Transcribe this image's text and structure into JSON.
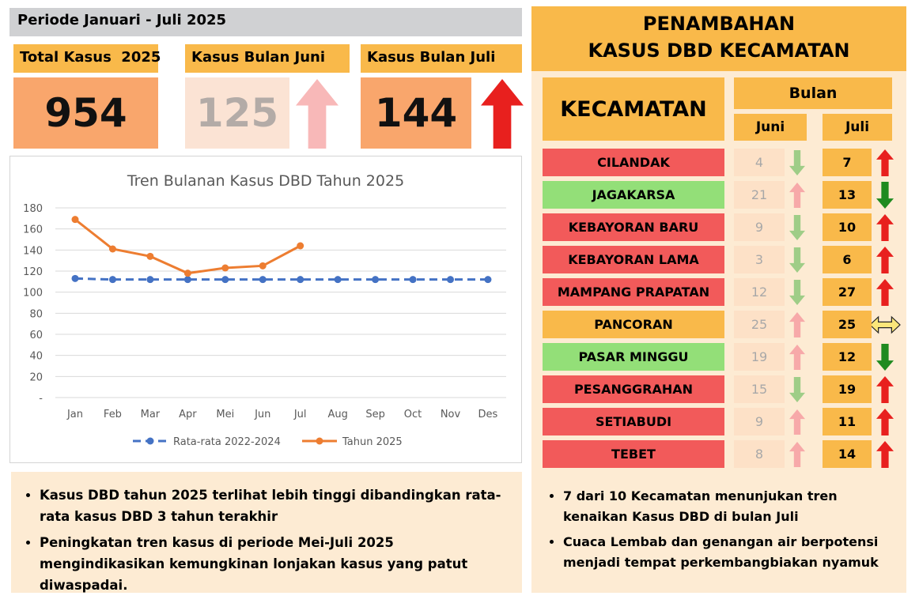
{
  "period": "Periode Januari - Juli 2025",
  "kpis": [
    {
      "label": "Total Kasus  2025",
      "value": 954
    },
    {
      "label": "Kasus Bulan Juni",
      "value": 125,
      "trend": "up",
      "faded": true
    },
    {
      "label": "Kasus Bulan Juli",
      "value": 144,
      "trend": "up"
    }
  ],
  "chart_data": {
    "type": "line",
    "title": "Tren Bulanan Kasus DBD Tahun 2025",
    "categories": [
      "Jan",
      "Feb",
      "Mar",
      "Apr",
      "Mei",
      "Jun",
      "Jul",
      "Aug",
      "Sep",
      "Oct",
      "Nov",
      "Des"
    ],
    "series": [
      {
        "name": "Rata-rata 2022-2024",
        "color": "#4472c4",
        "dashed": true,
        "values": [
          113,
          112,
          112,
          112,
          112,
          112,
          112,
          112,
          112,
          112,
          112,
          112
        ]
      },
      {
        "name": "Tahun 2025",
        "color": "#ed7d31",
        "values": [
          169,
          141,
          134,
          118,
          123,
          125,
          144,
          null,
          null,
          null,
          null,
          null
        ]
      }
    ],
    "ylim": [
      0,
      180
    ],
    "yticks": [
      {
        "value": 0,
        "label": "-"
      },
      20,
      40,
      60,
      80,
      100,
      120,
      140,
      160,
      180
    ],
    "grid": true,
    "legend": "bottom"
  },
  "notes_left": [
    "Kasus DBD tahun 2025 terlihat lebih tinggi dibandingkan rata-rata kasus DBD 3 tahun terakhir",
    "Peningkatan tren kasus di periode Mei-Juli 2025 mengindikasikan kemungkinan lonjakan kasus yang patut diwaspadai."
  ],
  "panel": {
    "title_lines": [
      "PENAMBAHAN",
      "KASUS DBD KECAMATAN"
    ],
    "header": "KECAMATAN",
    "month_group": "Bulan",
    "months": [
      "Juni",
      "Juli"
    ],
    "rows": [
      {
        "name": "CILANDAK",
        "color": "#f25a5a",
        "juni": 4,
        "juni_trend": "down",
        "juli": 7,
        "juli_trend": "up"
      },
      {
        "name": "JAGAKARSA",
        "color": "#93df78",
        "juni": 21,
        "juni_trend": "up",
        "juli": 13,
        "juli_trend": "down"
      },
      {
        "name": "KEBAYORAN BARU",
        "color": "#f25a5a",
        "juni": 9,
        "juni_trend": "down",
        "juli": 10,
        "juli_trend": "up"
      },
      {
        "name": "KEBAYORAN LAMA",
        "color": "#f25a5a",
        "juni": 3,
        "juni_trend": "down",
        "juli": 6,
        "juli_trend": "up"
      },
      {
        "name": "MAMPANG PRAPATAN",
        "color": "#f25a5a",
        "juni": 12,
        "juni_trend": "down",
        "juli": 27,
        "juli_trend": "up"
      },
      {
        "name": "PANCORAN",
        "color": "#f9b94a",
        "juni": 25,
        "juni_trend": "up",
        "juli": 25,
        "juli_trend": "equal"
      },
      {
        "name": "PASAR MINGGU",
        "color": "#93df78",
        "juni": 19,
        "juni_trend": "up",
        "juli": 12,
        "juli_trend": "down"
      },
      {
        "name": "PESANGGRAHAN",
        "color": "#f25a5a",
        "juni": 15,
        "juni_trend": "down",
        "juli": 19,
        "juli_trend": "up"
      },
      {
        "name": "SETIABUDI",
        "color": "#f25a5a",
        "juni": 9,
        "juni_trend": "up",
        "juli": 11,
        "juli_trend": "up"
      },
      {
        "name": "TEBET",
        "color": "#f25a5a",
        "juni": 8,
        "juni_trend": "up",
        "juli": 14,
        "juli_trend": "up"
      }
    ]
  },
  "notes_right": [
    "7 dari 10 Kecamatan menunjukan tren kenaikan Kasus DBD di bulan Juli",
    "Cuaca Lembab dan genangan air berpotensi menjadi tempat perkembangbiakan nyamuk"
  ]
}
